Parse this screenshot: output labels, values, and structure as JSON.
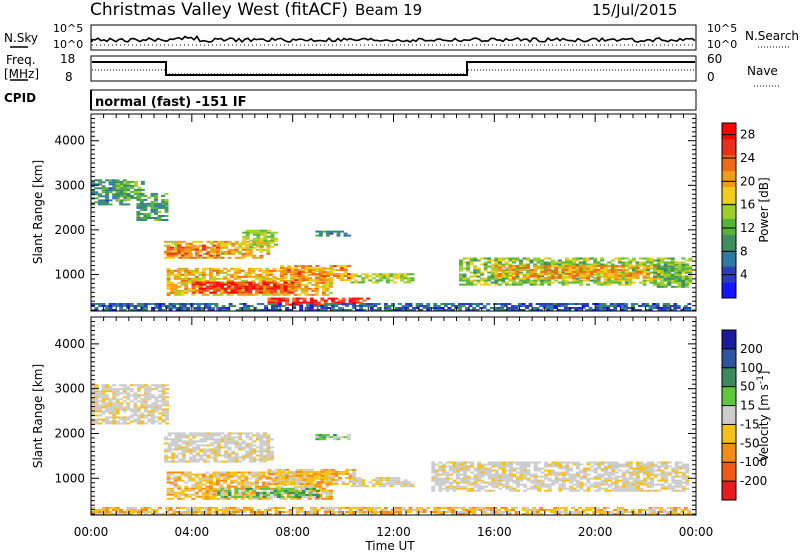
{
  "header": {
    "title": "Christmas Valley West (fitACF)",
    "beam": "Beam 19",
    "date": "15/Jul/2015"
  },
  "status": {
    "nsky_label": "N.Sky",
    "nsky_ticks": [
      "10^5",
      "10^0"
    ],
    "nsearch_label": "N.Search",
    "nsearch_ticks": [
      "10^5",
      "10^0"
    ],
    "freq_label": [
      "Freq.",
      "[MHz]"
    ],
    "freq_ticks": [
      "18",
      "8"
    ],
    "nave_label": "Nave",
    "nave_ticks": [
      "60",
      "0"
    ],
    "cpid_label": "CPID",
    "cpid_value": "normal (fast) -151 IF"
  },
  "chart_data": [
    {
      "type": "heatmap",
      "name": "power",
      "ylabel": "Slant Range [km]",
      "ytick_labels": [
        "1000",
        "2000",
        "3000",
        "4000"
      ],
      "yticks": [
        1000,
        2000,
        3000,
        4000
      ],
      "ylim": [
        180,
        4600
      ],
      "xlim": [
        0,
        24
      ],
      "colorbar": {
        "label": "Power [dB]",
        "ticks": [
          "4",
          "8",
          "12",
          "16",
          "20",
          "24",
          "28"
        ],
        "range": [
          0,
          30
        ],
        "colors": [
          "#1414ff",
          "#2a3fb8",
          "#2f7aa0",
          "#3c8f5c",
          "#56b43a",
          "#9ccf2a",
          "#f0cc18",
          "#f59a14",
          "#f06a14",
          "#e8301c",
          "#ff0000"
        ]
      },
      "regions": [
        {
          "t0": 0.0,
          "t1": 1.5,
          "r0": 2550,
          "r1": 3100,
          "level": 9
        },
        {
          "t0": 1.0,
          "t1": 2.1,
          "r0": 2650,
          "r1": 3100,
          "level": 12
        },
        {
          "t0": 1.8,
          "t1": 3.0,
          "r0": 2200,
          "r1": 2800,
          "level": 10
        },
        {
          "t0": 2.9,
          "t1": 7.0,
          "r0": 1350,
          "r1": 1750,
          "level": 19
        },
        {
          "t0": 3.0,
          "t1": 5.0,
          "r0": 1400,
          "r1": 1650,
          "level": 23
        },
        {
          "t0": 6.0,
          "t1": 7.3,
          "r0": 1600,
          "r1": 2000,
          "level": 15
        },
        {
          "t0": 8.9,
          "t1": 10.2,
          "r0": 1850,
          "r1": 1950,
          "level": 9
        },
        {
          "t0": 3.0,
          "t1": 9.5,
          "r0": 520,
          "r1": 1150,
          "level": 19
        },
        {
          "t0": 4.0,
          "t1": 8.0,
          "r0": 570,
          "r1": 800,
          "level": 26
        },
        {
          "t0": 7.5,
          "t1": 10.3,
          "r0": 850,
          "r1": 1200,
          "level": 21
        },
        {
          "t0": 7.0,
          "t1": 11.0,
          "r0": 300,
          "r1": 480,
          "level": 26
        },
        {
          "t0": 0.0,
          "t1": 23.8,
          "r0": 180,
          "r1": 320,
          "level": 6
        },
        {
          "t0": 10.3,
          "t1": 12.8,
          "r0": 800,
          "r1": 1000,
          "level": 15
        },
        {
          "t0": 14.6,
          "t1": 23.8,
          "r0": 750,
          "r1": 1350,
          "level": 14
        },
        {
          "t0": 16.0,
          "t1": 22.5,
          "r0": 900,
          "r1": 1200,
          "level": 20
        },
        {
          "t0": 22.3,
          "t1": 23.6,
          "r0": 700,
          "r1": 1200,
          "level": 12
        }
      ]
    },
    {
      "type": "heatmap",
      "name": "velocity",
      "ylabel": "Slant Range [km]",
      "ytick_labels": [
        "1000",
        "2000",
        "3000",
        "4000"
      ],
      "yticks": [
        1000,
        2000,
        3000,
        4000
      ],
      "ylim": [
        180,
        4600
      ],
      "xlim": [
        0,
        24
      ],
      "xlabel": "Time UT",
      "xtick_labels": [
        "00:00",
        "04:00",
        "08:00",
        "12:00",
        "16:00",
        "20:00",
        "00:00"
      ],
      "xticks": [
        0,
        4,
        8,
        12,
        16,
        20,
        24
      ],
      "colorbar": {
        "label": "Velocity [m s^-1]",
        "ticks": [
          "200",
          "100",
          "50",
          "15",
          "-15",
          "-50",
          "-100",
          "-200"
        ],
        "colors": [
          "#1a1aa0",
          "#2c54a0",
          "#3a8a5c",
          "#5cc83a",
          "#cccccc",
          "#f5c018",
          "#f58c14",
          "#f05a14",
          "#e81c1c"
        ]
      },
      "regions": [
        {
          "t0": 0.0,
          "t1": 3.0,
          "r0": 2200,
          "r1": 3100,
          "class": "gray"
        },
        {
          "t0": 2.9,
          "t1": 7.2,
          "r0": 1350,
          "r1": 2000,
          "class": "gray"
        },
        {
          "t0": 3.0,
          "t1": 9.5,
          "r0": 520,
          "r1": 1150,
          "class": "orange"
        },
        {
          "t0": 5.0,
          "t1": 9.0,
          "r0": 560,
          "r1": 760,
          "class": "green"
        },
        {
          "t0": 8.9,
          "t1": 10.2,
          "r0": 1850,
          "r1": 1950,
          "class": "green"
        },
        {
          "t0": 7.0,
          "t1": 10.5,
          "r0": 850,
          "r1": 1200,
          "class": "orange"
        },
        {
          "t0": 0.0,
          "t1": 23.8,
          "r0": 180,
          "r1": 330,
          "class": "orange"
        },
        {
          "t0": 13.5,
          "t1": 23.6,
          "r0": 700,
          "r1": 1350,
          "class": "gray"
        },
        {
          "t0": 10.3,
          "t1": 12.8,
          "r0": 800,
          "r1": 1000,
          "class": "gray"
        }
      ]
    }
  ]
}
